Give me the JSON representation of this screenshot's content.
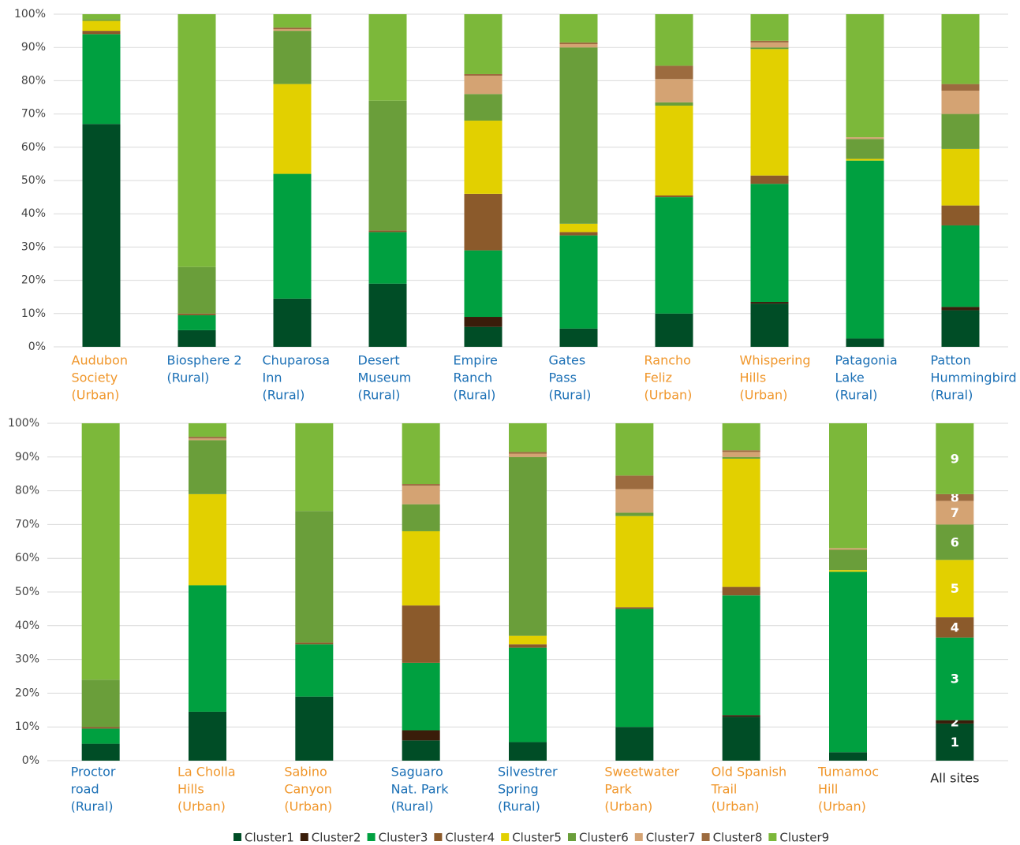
{
  "chart_data": [
    {
      "type": "bar",
      "stacked": true,
      "grid": true,
      "ylim": [
        0,
        100
      ],
      "yticks": [
        {
          "value": 0,
          "label": "0%"
        },
        {
          "value": 10,
          "label": "10%"
        },
        {
          "value": 20,
          "label": "20%"
        },
        {
          "value": 30,
          "label": "30%"
        },
        {
          "value": 40,
          "label": "40%"
        },
        {
          "value": 50,
          "label": "50%"
        },
        {
          "value": 60,
          "label": "60%"
        },
        {
          "value": 70,
          "label": "70%"
        },
        {
          "value": 80,
          "label": "80%"
        },
        {
          "value": 90,
          "label": "90%"
        },
        {
          "value": 100,
          "label": "100%"
        }
      ],
      "categories": [
        [
          "Audubon",
          "Society",
          "(Urban)"
        ],
        [
          "Biosphere 2",
          "(Rural)"
        ],
        [
          "Chuparosa",
          "Inn",
          "(Rural)"
        ],
        [
          "Desert",
          "Museum",
          "(Rural)"
        ],
        [
          "Empire",
          "Ranch",
          "(Rural)"
        ],
        [
          "Gates",
          "Pass",
          "(Rural)"
        ],
        [
          "Rancho",
          "Feliz",
          "(Urban)"
        ],
        [
          "Whispering",
          "Hills",
          "(Urban)"
        ],
        [
          "Patagonia",
          "Lake",
          "(Rural)"
        ],
        [
          "Patton",
          "Hummingbird",
          "(Rural)"
        ]
      ],
      "category_colors": [
        "#f0962a",
        "#1a6fb5",
        "#1a6fb5",
        "#1a6fb5",
        "#1a6fb5",
        "#1a6fb5",
        "#f0962a",
        "#f0962a",
        "#1a6fb5",
        "#1a6fb5"
      ],
      "series": [
        {
          "name": "Cluster1",
          "color": "#004d26",
          "values": [
            67,
            5,
            14.5,
            19,
            6,
            5.5,
            10,
            13,
            2.5,
            11
          ]
        },
        {
          "name": "Cluster2",
          "color": "#3a1d0a",
          "values": [
            0,
            0,
            0,
            0,
            3,
            0,
            0,
            0.5,
            0,
            1
          ]
        },
        {
          "name": "Cluster3",
          "color": "#00a040",
          "values": [
            27,
            4.5,
            37.5,
            15.5,
            20,
            28,
            35,
            35.5,
            53.5,
            24.5
          ]
        },
        {
          "name": "Cluster4",
          "color": "#8b5a2b",
          "values": [
            1,
            0.5,
            0,
            0.5,
            17,
            1,
            0.5,
            2.5,
            0,
            6
          ]
        },
        {
          "name": "Cluster5",
          "color": "#e2d000",
          "values": [
            3,
            0,
            27,
            0,
            22,
            2.5,
            27,
            38,
            0.5,
            17
          ]
        },
        {
          "name": "Cluster6",
          "color": "#6a9e3a",
          "values": [
            0.5,
            14,
            16,
            39,
            8,
            53,
            1,
            0.5,
            6,
            10.5
          ]
        },
        {
          "name": "Cluster7",
          "color": "#d4a373",
          "values": [
            0,
            0,
            0.5,
            0,
            5.5,
            1,
            7,
            1.5,
            0.5,
            7
          ]
        },
        {
          "name": "Cluster8",
          "color": "#9c6b3f",
          "values": [
            0,
            0,
            0.5,
            0,
            0.5,
            0.5,
            4,
            0.5,
            0,
            2
          ]
        },
        {
          "name": "Cluster9",
          "color": "#7cb83a",
          "values": [
            1.5,
            76,
            4,
            26,
            18,
            8.5,
            15.5,
            8,
            37,
            21
          ]
        }
      ]
    },
    {
      "type": "bar",
      "stacked": true,
      "grid": true,
      "ylim": [
        0,
        100
      ],
      "yticks": [
        {
          "value": 0,
          "label": "0%"
        },
        {
          "value": 10,
          "label": "10%"
        },
        {
          "value": 20,
          "label": "20%"
        },
        {
          "value": 30,
          "label": "30%"
        },
        {
          "value": 40,
          "label": "40%"
        },
        {
          "value": 50,
          "label": "50%"
        },
        {
          "value": 60,
          "label": "60%"
        },
        {
          "value": 70,
          "label": "70%"
        },
        {
          "value": 80,
          "label": "80%"
        },
        {
          "value": 90,
          "label": "90%"
        },
        {
          "value": 100,
          "label": "100%"
        }
      ],
      "categories": [
        [
          "Proctor",
          "road",
          "(Rural)"
        ],
        [
          "La Cholla",
          "Hills",
          "(Urban)"
        ],
        [
          "Sabino",
          "Canyon",
          "(Urban)"
        ],
        [
          "Saguaro",
          "Nat. Park",
          "(Rural)"
        ],
        [
          "Silvestrer",
          "Spring",
          "(Rural)"
        ],
        [
          "Sweetwater",
          "Park",
          "(Urban)"
        ],
        [
          "Old Spanish",
          "Trail",
          "(Urban)"
        ],
        [
          "Tumamoc",
          "Hill",
          "(Urban)"
        ],
        [
          "All sites"
        ]
      ],
      "category_colors": [
        "#1a6fb5",
        "#f0962a",
        "#f0962a",
        "#1a6fb5",
        "#1a6fb5",
        "#f0962a",
        "#f0962a",
        "#f0962a",
        "#222222"
      ],
      "segment_labels": [
        "1",
        "2",
        "3",
        "4",
        "5",
        "6",
        "7",
        "8",
        "9"
      ],
      "series": [
        {
          "values": [
            5,
            14.5,
            19,
            6,
            5.5,
            10,
            13,
            2.5,
            11
          ]
        },
        {
          "values": [
            0,
            0,
            0,
            3,
            0,
            0,
            0.5,
            0,
            1
          ]
        },
        {
          "values": [
            4.5,
            37.5,
            15.5,
            20,
            28,
            35,
            35.5,
            53.5,
            24.5
          ]
        },
        {
          "values": [
            0.5,
            0,
            0.5,
            17,
            1,
            0.5,
            2.5,
            0,
            6
          ]
        },
        {
          "values": [
            0,
            27,
            0,
            22,
            2.5,
            27,
            38,
            0.5,
            17
          ]
        },
        {
          "values": [
            14,
            16,
            39,
            8,
            53,
            1,
            0.5,
            6,
            10.5
          ]
        },
        {
          "values": [
            0,
            0.5,
            0,
            5.5,
            1,
            7,
            1.5,
            0.5,
            7
          ]
        },
        {
          "values": [
            0,
            0.5,
            0,
            0.5,
            0.5,
            4,
            0.5,
            0,
            2
          ]
        },
        {
          "values": [
            76,
            4,
            26,
            18,
            8.5,
            15.5,
            8,
            37,
            21
          ]
        }
      ]
    }
  ]
}
